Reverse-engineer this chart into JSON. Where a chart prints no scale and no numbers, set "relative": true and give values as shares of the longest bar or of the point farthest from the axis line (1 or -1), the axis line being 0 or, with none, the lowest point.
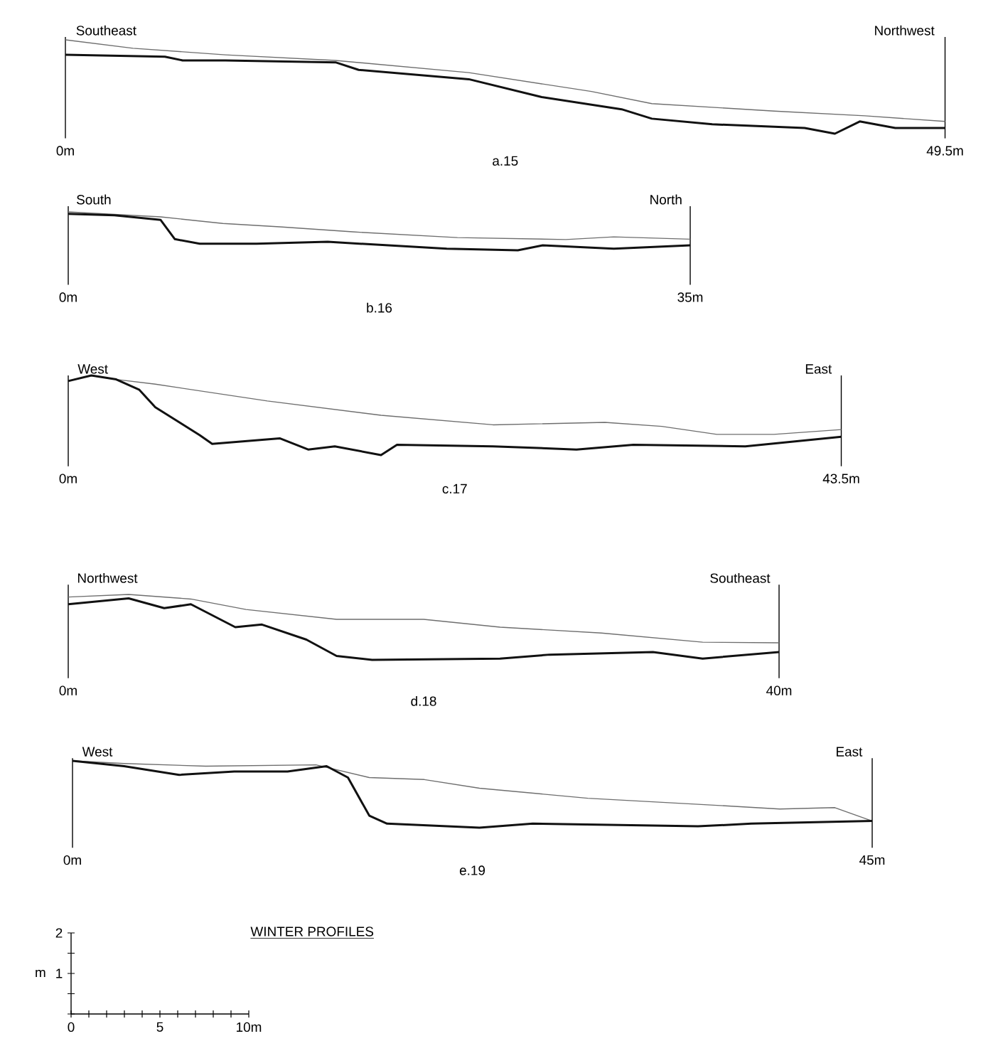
{
  "chart_data": [
    {
      "type": "line",
      "relative": true,
      "xlabel": "a.15",
      "annotations": [
        "Southeast",
        "Northwest"
      ],
      "xlim": [
        0,
        49.5
      ],
      "xticks": [
        {
          "value": 0,
          "label": "0m"
        },
        {
          "value": 49.5,
          "label": "49.5m"
        }
      ],
      "tick_labels": "x",
      "series": [
        {
          "color": "#6e6e6e",
          "x": [
            0,
            3.8,
            9.0,
            15.2,
            22.7,
            29.6,
            33.0,
            39.9,
            45.0,
            49.5
          ],
          "values": [
            1,
            0.91,
            0.84,
            0.78,
            0.65,
            0.45,
            0.32,
            0.24,
            0.19,
            0.13
          ]
        },
        {
          "color": "#111111",
          "x": [
            0,
            5.6,
            6.6,
            9.0,
            15.2,
            16.5,
            22.7,
            26.8,
            31.3,
            33.0,
            36.4,
            41.6,
            43.3,
            44.7,
            46.7,
            49.5
          ],
          "values": [
            0.84,
            0.82,
            0.78,
            0.78,
            0.76,
            0.68,
            0.58,
            0.39,
            0.26,
            0.16,
            0.1,
            0.06,
            0,
            0.13,
            0.06,
            0.06
          ]
        }
      ]
    },
    {
      "type": "line",
      "relative": true,
      "xlabel": "b.16",
      "annotations": [
        "South",
        "North"
      ],
      "xlim": [
        0,
        35
      ],
      "xticks": [
        {
          "value": 0,
          "label": "0m"
        },
        {
          "value": 35,
          "label": "35m"
        }
      ],
      "tick_labels": "x",
      "series": [
        {
          "color": "#6e6e6e",
          "x": [
            0,
            5.2,
            8.7,
            11.9,
            16.0,
            21.9,
            28.0,
            30.7,
            35
          ],
          "values": [
            1,
            0.87,
            0.7,
            0.61,
            0.48,
            0.33,
            0.28,
            0.35,
            0.29
          ]
        },
        {
          "color": "#111111",
          "x": [
            0,
            2.6,
            5.2,
            6.0,
            7.4,
            10.6,
            14.6,
            21.3,
            25.3,
            26.7,
            30.7,
            35
          ],
          "values": [
            0.95,
            0.91,
            0.79,
            0.29,
            0.17,
            0.17,
            0.22,
            0.04,
            0,
            0.13,
            0.04,
            0.13
          ]
        }
      ]
    },
    {
      "type": "line",
      "relative": true,
      "xlabel": "c.17",
      "annotations": [
        "West",
        "East"
      ],
      "xlim": [
        0,
        43.5
      ],
      "xticks": [
        {
          "value": 0,
          "label": "0m"
        },
        {
          "value": 43.5,
          "label": "43.5m"
        }
      ],
      "tick_labels": "x",
      "series": [
        {
          "color": "#6e6e6e",
          "x": [
            0,
            1.3,
            2.7,
            4.9,
            11.2,
            17.6,
            23.9,
            30.2,
            33.4,
            36.5,
            39.7,
            43.5
          ],
          "values": [
            0.93,
            1,
            0.95,
            0.89,
            0.68,
            0.5,
            0.38,
            0.41,
            0.36,
            0.26,
            0.26,
            0.32
          ]
        },
        {
          "color": "#111111",
          "x": [
            0,
            1.3,
            2.7,
            4.0,
            4.9,
            7.4,
            8.1,
            11.9,
            13.5,
            15.0,
            17.6,
            18.5,
            23.9,
            28.6,
            31.8,
            38.1,
            43.5
          ],
          "values": [
            0.93,
            1,
            0.95,
            0.82,
            0.6,
            0.25,
            0.14,
            0.21,
            0.07,
            0.11,
            0,
            0.13,
            0.11,
            0.07,
            0.13,
            0.11,
            0.23
          ]
        }
      ]
    },
    {
      "type": "line",
      "relative": true,
      "xlabel": "d.18",
      "annotations": [
        "Northwest",
        "Southeast"
      ],
      "xlim": [
        0,
        40
      ],
      "xticks": [
        {
          "value": 0,
          "label": "0m"
        },
        {
          "value": 40,
          "label": "40m"
        }
      ],
      "tick_labels": "x",
      "series": [
        {
          "color": "#6e6e6e",
          "x": [
            0,
            3.4,
            6.9,
            10.0,
            15.1,
            20.0,
            24.3,
            30.0,
            35.7,
            40
          ],
          "values": [
            0.96,
            1,
            0.93,
            0.77,
            0.62,
            0.62,
            0.5,
            0.41,
            0.27,
            0.26
          ]
        },
        {
          "color": "#111111",
          "x": [
            0,
            3.4,
            5.4,
            6.9,
            9.4,
            10.9,
            13.4,
            15.1,
            17.1,
            24.3,
            27.1,
            32.9,
            35.7,
            40
          ],
          "values": [
            0.85,
            0.94,
            0.79,
            0.85,
            0.5,
            0.54,
            0.31,
            0.06,
            0,
            0.02,
            0.08,
            0.12,
            0.02,
            0.12
          ]
        }
      ]
    },
    {
      "type": "line",
      "relative": true,
      "xlabel": "e.19",
      "annotations": [
        "West",
        "East"
      ],
      "xlim": [
        0,
        45
      ],
      "xticks": [
        {
          "value": 0,
          "label": "0m"
        },
        {
          "value": 45,
          "label": "45m"
        }
      ],
      "tick_labels": "x",
      "series": [
        {
          "color": "#6e6e6e",
          "x": [
            0,
            2.9,
            7.5,
            13.7,
            16.7,
            19.8,
            22.9,
            29.0,
            35.2,
            39.8,
            42.9,
            45
          ],
          "values": [
            1,
            0.96,
            0.92,
            0.94,
            0.75,
            0.72,
            0.59,
            0.44,
            0.35,
            0.28,
            0.3,
            0.1
          ]
        },
        {
          "color": "#111111",
          "x": [
            0,
            2.9,
            6.0,
            9.1,
            12.1,
            14.3,
            15.5,
            16.7,
            17.7,
            22.9,
            25.9,
            35.2,
            38.2,
            45
          ],
          "values": [
            1,
            0.92,
            0.79,
            0.84,
            0.84,
            0.92,
            0.75,
            0.18,
            0.06,
            0,
            0.06,
            0.02,
            0.06,
            0.1
          ]
        }
      ]
    },
    {
      "type": "line",
      "title": "WINTER PROFILES",
      "ylabel": "m",
      "xlim": [
        0,
        10
      ],
      "ylim": [
        0,
        2
      ],
      "xticks": [
        0,
        {
          "value": 1,
          "label": null
        },
        {
          "value": 2,
          "label": null
        },
        {
          "value": 3,
          "label": null
        },
        {
          "value": 4,
          "label": null
        },
        5,
        {
          "value": 6,
          "label": null
        },
        {
          "value": 7,
          "label": null
        },
        {
          "value": 8,
          "label": null
        },
        {
          "value": 9,
          "label": null
        },
        {
          "value": 10,
          "label": "10m"
        }
      ],
      "yticks": [
        {
          "value": 0,
          "label": null
        },
        {
          "value": 0.5,
          "label": null
        },
        1,
        {
          "value": 1.5,
          "label": null
        },
        2
      ]
    }
  ]
}
